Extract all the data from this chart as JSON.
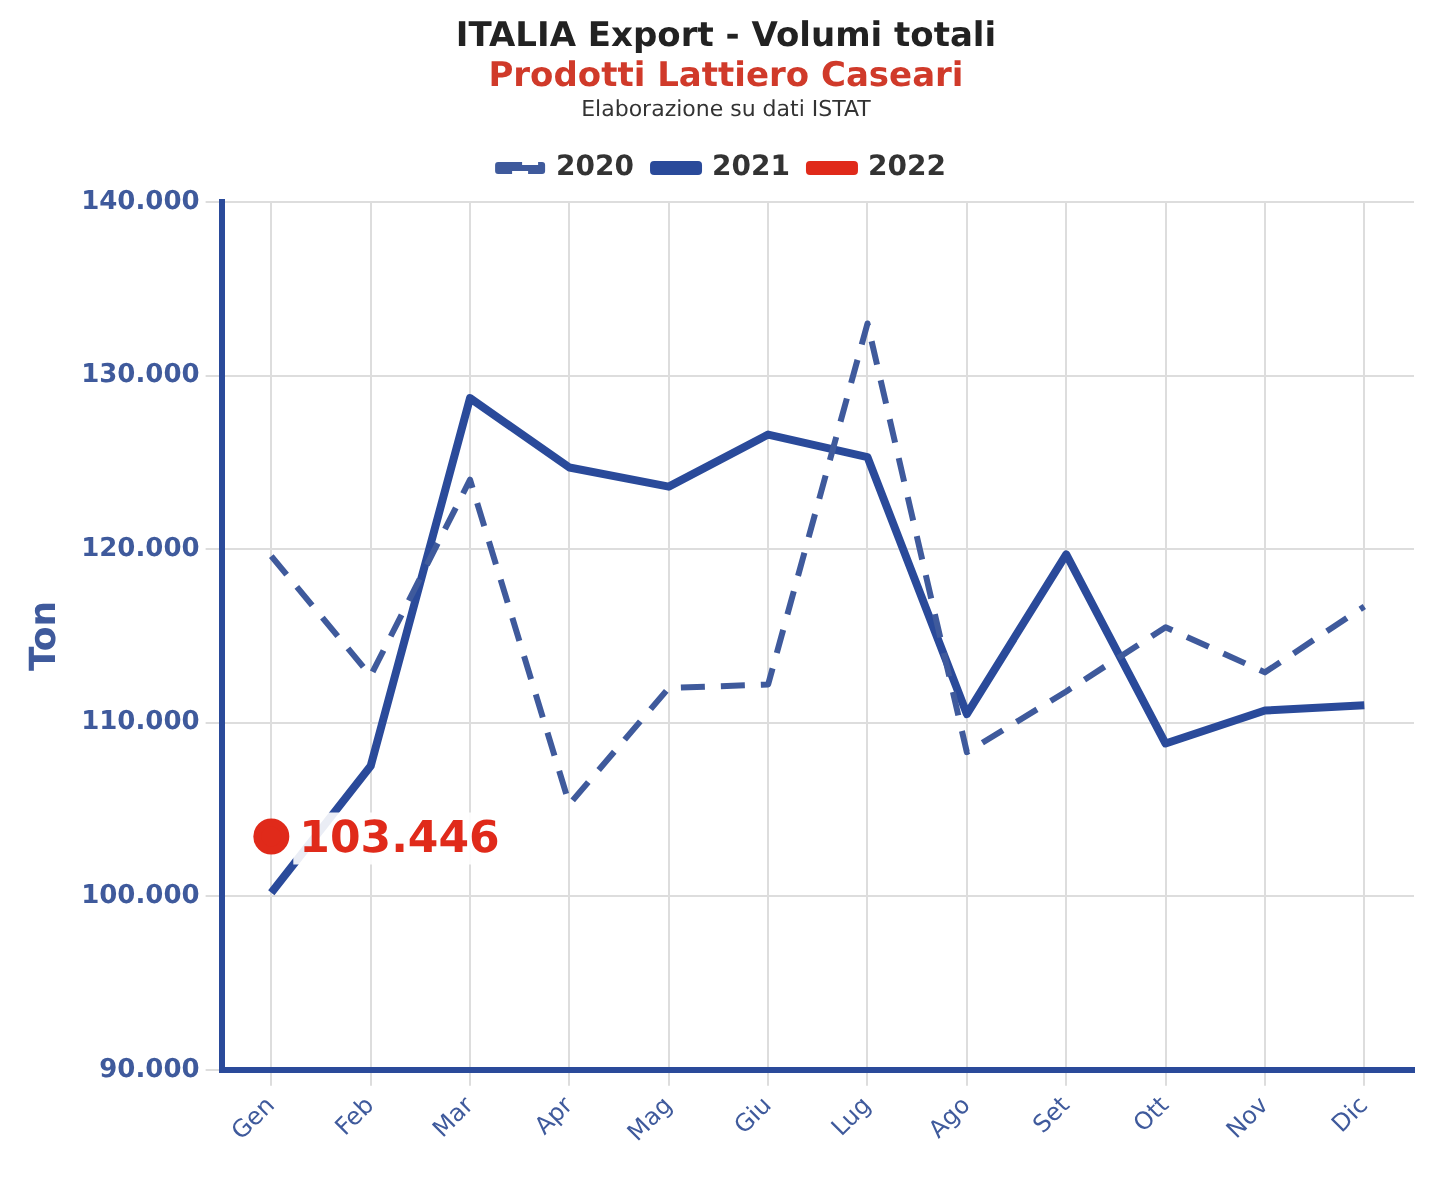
{
  "chart_data": {
    "type": "line",
    "title": "ITALIA Export - Volumi totali",
    "subtitle": "Prodotti Lattiero Caseari",
    "annotations": [
      "Elaborazione su dati ISTAT"
    ],
    "ylabel": "Ton",
    "categories": [
      "Gen",
      "Feb",
      "Mar",
      "Apr",
      "Mag",
      "Giu",
      "Lug",
      "Ago",
      "Set",
      "Ott",
      "Nov",
      "Dic"
    ],
    "series": [
      {
        "name": "2020",
        "color": "#3f5a9c",
        "line_style": "dashed",
        "marker": "none",
        "values": [
          119600,
          112700,
          124000,
          105300,
          112000,
          112200,
          133000,
          108300,
          111800,
          115500,
          112900,
          116700
        ]
      },
      {
        "name": "2021",
        "color": "#2a4a9a",
        "line_style": "solid",
        "marker": "none",
        "values": [
          100200,
          107500,
          128700,
          124700,
          123600,
          126600,
          125300,
          110500,
          119700,
          108800,
          110700,
          111000
        ]
      },
      {
        "name": "2022",
        "color": "#e02a1a",
        "marker": "circle",
        "values": [
          103446,
          null,
          null,
          null,
          null,
          null,
          null,
          null,
          null,
          null,
          null,
          null
        ],
        "value_labels": [
          "103.446",
          null,
          null,
          null,
          null,
          null,
          null,
          null,
          null,
          null,
          null,
          null
        ]
      }
    ],
    "ylim": [
      90000,
      140000
    ],
    "yticks": [
      {
        "value": 90000,
        "label": "90.000"
      },
      {
        "value": 100000,
        "label": "100.000"
      },
      {
        "value": 110000,
        "label": "110.000"
      },
      {
        "value": 120000,
        "label": "120.000"
      },
      {
        "value": 130000,
        "label": "130.000"
      },
      {
        "value": 140000,
        "label": "140.000"
      }
    ],
    "grid": true,
    "legend": "top"
  }
}
